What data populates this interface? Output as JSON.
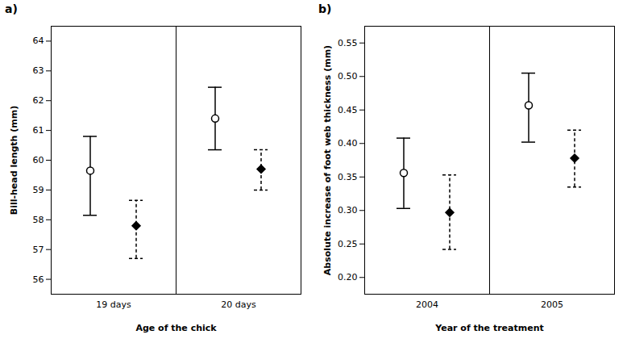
{
  "chart_data": [
    {
      "type": "errorbar",
      "title": "a)",
      "xlabel": "Age of the chick",
      "ylabel": "Bill-head length (mm)",
      "categories": [
        "19 days",
        "20 days"
      ],
      "series": [
        {
          "color": "black",
          "marker": "circle_open",
          "line_style": "solid",
          "values": [
            59.65,
            61.4
          ],
          "ci_lower": [
            58.15,
            60.35
          ],
          "ci_upper": [
            60.8,
            62.45
          ]
        },
        {
          "color": "black",
          "marker": "diamond",
          "line_style": "dashed",
          "values": [
            57.8,
            59.7
          ],
          "ci_lower": [
            56.7,
            59.0
          ],
          "ci_upper": [
            58.65,
            60.35
          ]
        }
      ],
      "ylim": [
        55.5,
        64.5
      ],
      "yticks": [
        56,
        57,
        58,
        59,
        60,
        61,
        62,
        63,
        64
      ]
    },
    {
      "type": "errorbar",
      "title": "b)",
      "xlabel": "Year of the treatment",
      "ylabel": "Absolute increase of foot web thickness (mm)",
      "categories": [
        "2004",
        "2005"
      ],
      "series": [
        {
          "color": "black",
          "marker": "circle_open",
          "line_style": "solid",
          "values": [
            0.356,
            0.457
          ],
          "ci_lower": [
            0.303,
            0.402
          ],
          "ci_upper": [
            0.408,
            0.505
          ]
        },
        {
          "color": "black",
          "marker": "diamond",
          "line_style": "dashed",
          "values": [
            0.297,
            0.378
          ],
          "ci_lower": [
            0.242,
            0.335
          ],
          "ci_upper": [
            0.353,
            0.42
          ]
        }
      ],
      "ylim": [
        0.175,
        0.575
      ],
      "yticks": [
        {
          "value": 0.2,
          "label": "0.20"
        },
        {
          "value": 0.25,
          "label": "0.25"
        },
        {
          "value": 0.3,
          "label": "0.30"
        },
        {
          "value": 0.35,
          "label": "0.35"
        },
        {
          "value": 0.4,
          "label": "0.40"
        },
        {
          "value": 0.45,
          "label": "0.45"
        },
        {
          "value": 0.5,
          "label": "0.50"
        },
        {
          "value": 0.55,
          "label": "0.55"
        }
      ]
    }
  ]
}
